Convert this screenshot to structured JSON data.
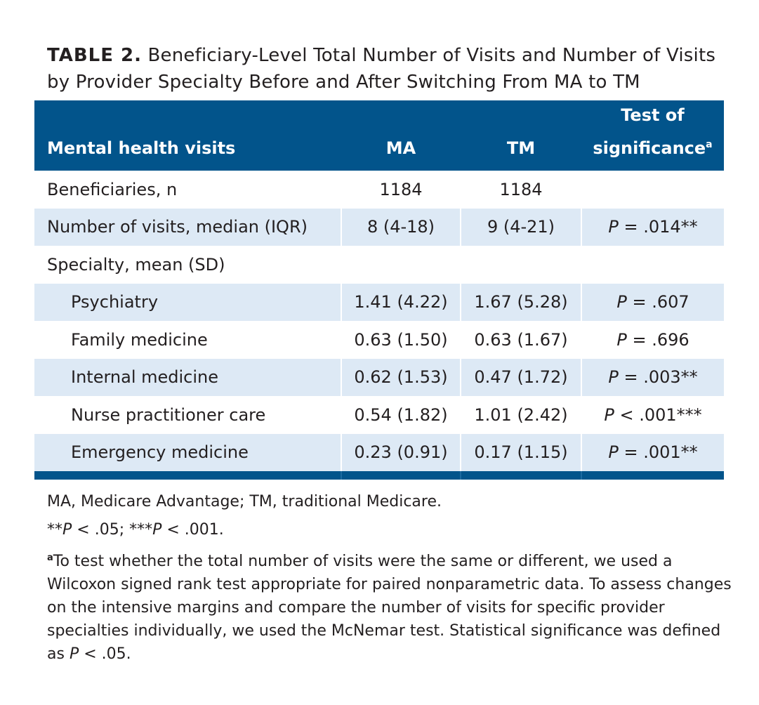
{
  "caption": {
    "label": "TABLE 2.",
    "text": "Beneficiary-Level Total Number of Visits and Number of Visits by Provider Specialty Before and After Switching From MA to TM"
  },
  "table": {
    "headers": {
      "col0": "Mental health visits",
      "col1": "MA",
      "col2": "TM",
      "col3_line1": "Test of",
      "col3_line2": "significance",
      "col3_sup": "a"
    },
    "rows": [
      {
        "label": "Beneficiaries, n",
        "ma": "1184",
        "tm": "1184",
        "sig_p": "",
        "sig_rest": ""
      },
      {
        "label": "Number of visits, median (IQR)",
        "ma": "8 (4-18)",
        "tm": "9 (4-21)",
        "sig_p": "P",
        "sig_rest": " = .014**"
      },
      {
        "label": "Specialty, mean (SD)",
        "ma": "",
        "tm": "",
        "sig_p": "",
        "sig_rest": ""
      },
      {
        "label": "Psychiatry",
        "ma": "1.41 (4.22)",
        "tm": "1.67 (5.28)",
        "sig_p": "P",
        "sig_rest": " = .607"
      },
      {
        "label": "Family medicine",
        "ma": "0.63 (1.50)",
        "tm": "0.63 (1.67)",
        "sig_p": "P",
        "sig_rest": " = .696"
      },
      {
        "label": "Internal medicine",
        "ma": "0.62 (1.53)",
        "tm": "0.47 (1.72)",
        "sig_p": "P",
        "sig_rest": " = .003**"
      },
      {
        "label": "Nurse practitioner care",
        "ma": "0.54 (1.82)",
        "tm": "1.01 (2.42)",
        "sig_p": "P",
        "sig_rest": " < .001***"
      },
      {
        "label": "Emergency medicine",
        "ma": "0.23 (0.91)",
        "tm": "0.17 (1.15)",
        "sig_p": "P",
        "sig_rest": " = .001**"
      }
    ]
  },
  "notes": {
    "abbrev": "MA, Medicare Advantage; TM, traditional Medicare.",
    "sig_a_stars": "**",
    "sig_a_p": "P",
    "sig_a_rest": " < .05; ",
    "sig_b_stars": "***",
    "sig_b_p": "P",
    "sig_b_rest": " < .001.",
    "footnote_sup": "a",
    "footnote_text": "To test whether the total number of visits were the same or different, we used a Wilcoxon signed rank test appropriate for paired nonparametric data. To assess changes on the intensive margins and compare the number of visits for specific provider specialties individually, we used the McNemar test. Statistical significance was defined as ",
    "footnote_p": "P",
    "footnote_end": " < .05."
  },
  "colors": {
    "header_bg": "#02548b",
    "stripe_bg": "#dde9f5",
    "text": "#231f20"
  }
}
